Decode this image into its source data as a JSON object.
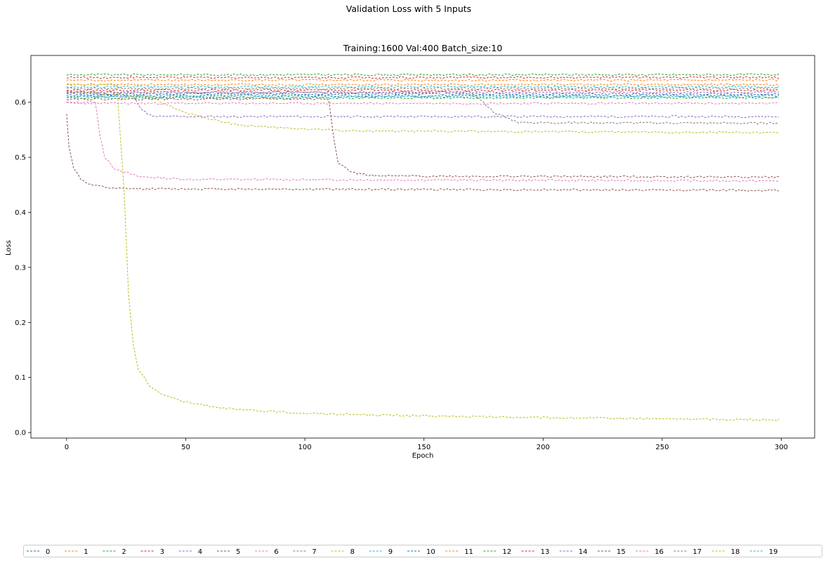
{
  "figure": {
    "suptitle": "Validation Loss with 5 Inputs"
  },
  "chart_data": {
    "type": "line",
    "title": "Training:1600  Val:400  Batch_size:10",
    "xlabel": "Epoch",
    "ylabel": "Loss",
    "xlim": [
      -15,
      314
    ],
    "ylim": [
      -0.01,
      0.685
    ],
    "xticks": [
      0,
      50,
      100,
      150,
      200,
      250,
      300
    ],
    "yticks": [
      0.0,
      0.1,
      0.2,
      0.3,
      0.4,
      0.5,
      0.6
    ],
    "ytick_labels": [
      "0.0",
      "0.1",
      "0.2",
      "0.3",
      "0.4",
      "0.5",
      "0.6"
    ],
    "grid": false,
    "line_style": "dashed",
    "legend_position": "below plot, single row",
    "epochs": 300,
    "series": [
      {
        "name": "0",
        "color": "#1f77b4",
        "keypoints": [
          [
            0,
            0.612
          ],
          [
            299,
            0.612
          ]
        ]
      },
      {
        "name": "1",
        "color": "#ff7f0e",
        "keypoints": [
          [
            0,
            0.64
          ],
          [
            299,
            0.64
          ]
        ]
      },
      {
        "name": "2",
        "color": "#2ca02c",
        "keypoints": [
          [
            0,
            0.65
          ],
          [
            299,
            0.65
          ]
        ]
      },
      {
        "name": "3",
        "color": "#d62728",
        "keypoints": [
          [
            0,
            0.645
          ],
          [
            299,
            0.645
          ]
        ]
      },
      {
        "name": "4",
        "color": "#9467bd",
        "keypoints": [
          [
            0,
            0.62
          ],
          [
            28,
            0.61
          ],
          [
            32,
            0.585
          ],
          [
            36,
            0.574
          ],
          [
            299,
            0.574
          ]
        ]
      },
      {
        "name": "5",
        "color": "#8c564b",
        "keypoints": [
          [
            0,
            0.578
          ],
          [
            1,
            0.52
          ],
          [
            3,
            0.48
          ],
          [
            6,
            0.46
          ],
          [
            10,
            0.45
          ],
          [
            20,
            0.443
          ],
          [
            299,
            0.44
          ]
        ]
      },
      {
        "name": "6",
        "color": "#e377c2",
        "keypoints": [
          [
            0,
            0.6
          ],
          [
            12,
            0.6
          ],
          [
            14,
            0.54
          ],
          [
            16,
            0.5
          ],
          [
            20,
            0.48
          ],
          [
            30,
            0.465
          ],
          [
            50,
            0.46
          ],
          [
            299,
            0.457
          ]
        ]
      },
      {
        "name": "7",
        "color": "#7f7f7f",
        "keypoints": [
          [
            0,
            0.618
          ],
          [
            170,
            0.618
          ],
          [
            180,
            0.58
          ],
          [
            190,
            0.563
          ],
          [
            299,
            0.562
          ]
        ]
      },
      {
        "name": "8",
        "color": "#bcbd22",
        "keypoints": [
          [
            0,
            0.62
          ],
          [
            35,
            0.61
          ],
          [
            50,
            0.58
          ],
          [
            70,
            0.56
          ],
          [
            90,
            0.553
          ],
          [
            120,
            0.548
          ],
          [
            299,
            0.545
          ]
        ]
      },
      {
        "name": "9",
        "color": "#17becf",
        "keypoints": [
          [
            0,
            0.61
          ],
          [
            299,
            0.61
          ]
        ]
      },
      {
        "name": "10",
        "color": "#1f77b4",
        "keypoints": [
          [
            0,
            0.615
          ],
          [
            299,
            0.615
          ]
        ]
      },
      {
        "name": "11",
        "color": "#ff7f0e",
        "keypoints": [
          [
            0,
            0.632
          ],
          [
            299,
            0.632
          ]
        ]
      },
      {
        "name": "12",
        "color": "#2ca02c",
        "keypoints": [
          [
            0,
            0.608
          ],
          [
            299,
            0.608
          ]
        ]
      },
      {
        "name": "13",
        "color": "#d62728",
        "keypoints": [
          [
            0,
            0.622
          ],
          [
            299,
            0.622
          ]
        ]
      },
      {
        "name": "14",
        "color": "#9467bd",
        "keypoints": [
          [
            0,
            0.618
          ],
          [
            299,
            0.618
          ]
        ]
      },
      {
        "name": "15",
        "color": "#8c564b",
        "keypoints": [
          [
            0,
            0.606
          ],
          [
            110,
            0.606
          ],
          [
            112,
            0.54
          ],
          [
            114,
            0.49
          ],
          [
            120,
            0.472
          ],
          [
            130,
            0.466
          ],
          [
            299,
            0.464
          ]
        ]
      },
      {
        "name": "16",
        "color": "#e377c2",
        "keypoints": [
          [
            0,
            0.598
          ],
          [
            299,
            0.598
          ]
        ]
      },
      {
        "name": "17",
        "color": "#7f7f7f",
        "keypoints": [
          [
            0,
            0.625
          ],
          [
            299,
            0.625
          ]
        ]
      },
      {
        "name": "18",
        "color": "#bcbd22",
        "keypoints": [
          [
            0,
            0.632
          ],
          [
            21,
            0.632
          ],
          [
            24,
            0.45
          ],
          [
            26,
            0.25
          ],
          [
            28,
            0.16
          ],
          [
            30,
            0.115
          ],
          [
            35,
            0.085
          ],
          [
            40,
            0.07
          ],
          [
            50,
            0.055
          ],
          [
            70,
            0.042
          ],
          [
            100,
            0.035
          ],
          [
            150,
            0.03
          ],
          [
            200,
            0.027
          ],
          [
            299,
            0.023
          ]
        ]
      },
      {
        "name": "19",
        "color": "#17becf",
        "keypoints": [
          [
            0,
            0.628
          ],
          [
            299,
            0.628
          ]
        ]
      }
    ]
  }
}
